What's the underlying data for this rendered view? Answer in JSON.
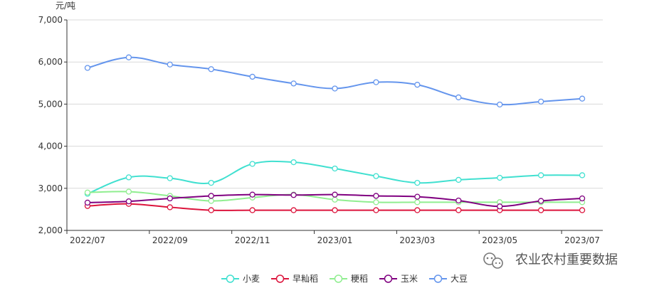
{
  "chart_data": {
    "type": "line",
    "title": "",
    "xlabel": "",
    "ylabel": "元/吨",
    "ylim": [
      2000,
      7000
    ],
    "yticks": [
      2000,
      3000,
      4000,
      5000,
      6000,
      7000
    ],
    "ytick_labels": [
      "2,000",
      "3,000",
      "4,000",
      "5,000",
      "6,000",
      "7,000"
    ],
    "x": [
      "2022/07",
      "2022/08",
      "2022/09",
      "2022/10",
      "2022/11",
      "2022/12",
      "2023/01",
      "2023/02",
      "2023/03",
      "2023/04",
      "2023/05",
      "2023/06",
      "2023/07"
    ],
    "xtick_labels": [
      "2022/07",
      "2022/09",
      "2022/11",
      "2023/01",
      "2023/03",
      "2023/05",
      "2023/07"
    ],
    "grid": true,
    "legend_position": "bottom",
    "series": [
      {
        "name": "小麦",
        "color": "#40e0d0",
        "values": [
          2870,
          3260,
          3240,
          3130,
          3580,
          3620,
          3470,
          3290,
          3130,
          3200,
          3250,
          3310,
          3310
        ]
      },
      {
        "name": "早籼稻",
        "color": "#dc143c",
        "values": [
          2580,
          2630,
          2550,
          2480,
          2480,
          2480,
          2480,
          2480,
          2480,
          2480,
          2480,
          2480,
          2480
        ]
      },
      {
        "name": "粳稻",
        "color": "#90ee90",
        "values": [
          2900,
          2920,
          2820,
          2700,
          2780,
          2850,
          2730,
          2670,
          2670,
          2670,
          2670,
          2670,
          2670
        ]
      },
      {
        "name": "玉米",
        "color": "#800080",
        "values": [
          2660,
          2690,
          2760,
          2820,
          2850,
          2840,
          2850,
          2820,
          2800,
          2710,
          2570,
          2700,
          2760
        ]
      },
      {
        "name": "大豆",
        "color": "#6495ed",
        "values": [
          5860,
          6110,
          5940,
          5830,
          5650,
          5490,
          5370,
          5520,
          5460,
          5160,
          4990,
          5060,
          5130
        ]
      }
    ]
  },
  "watermark": {
    "text": "农业农村重要数据",
    "icon": "wechat-official-account-icon"
  }
}
